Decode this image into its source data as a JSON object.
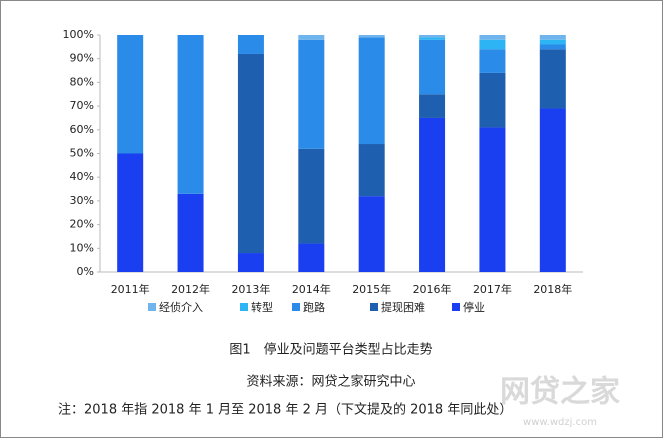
{
  "chart_data": {
    "type": "stacked-bar",
    "categories": [
      "2011年",
      "2012年",
      "2013年",
      "2014年",
      "2015年",
      "2016年",
      "2017年",
      "2018年"
    ],
    "series": [
      {
        "name": "经侦介入",
        "color": "#6fb4ec",
        "values": [
          0,
          0,
          0,
          2,
          1,
          1,
          2,
          2
        ]
      },
      {
        "name": "转型",
        "color": "#2cb4f4",
        "values": [
          0,
          0,
          0,
          0,
          0,
          1,
          4,
          2
        ]
      },
      {
        "name": "跑路",
        "color": "#2b8be8",
        "values": [
          50,
          67,
          8,
          46,
          45,
          23,
          10,
          2
        ]
      },
      {
        "name": "提现困难",
        "color": "#1f5fb0",
        "values": [
          0,
          0,
          84,
          40,
          22,
          10,
          23,
          25
        ]
      },
      {
        "name": "停业",
        "color": "#1a3ff0",
        "values": [
          50,
          33,
          8,
          12,
          32,
          65,
          61,
          69
        ]
      }
    ],
    "ylim": [
      0,
      100
    ],
    "yticks": [
      {
        "value": 0,
        "label": "0%"
      },
      {
        "value": 10,
        "label": "10%"
      },
      {
        "value": 20,
        "label": "20%"
      },
      {
        "value": 30,
        "label": "30%"
      },
      {
        "value": 40,
        "label": "40%"
      },
      {
        "value": 50,
        "label": "50%"
      },
      {
        "value": 60,
        "label": "60%"
      },
      {
        "value": 70,
        "label": "70%"
      },
      {
        "value": 80,
        "label": "80%"
      },
      {
        "value": 90,
        "label": "90%"
      },
      {
        "value": 100,
        "label": "100%"
      }
    ],
    "grid": false,
    "legend": "bottom"
  },
  "caption": "图1　停业及问题平台类型占比走势",
  "source": "资料来源：网贷之家研究中心",
  "note": "注：2018 年指 2018 年 1 月至 2018 年 2 月（下文提及的 2018 年同此处）",
  "watermark": {
    "logo": "网贷之家",
    "url": "www.wdzj.com"
  }
}
